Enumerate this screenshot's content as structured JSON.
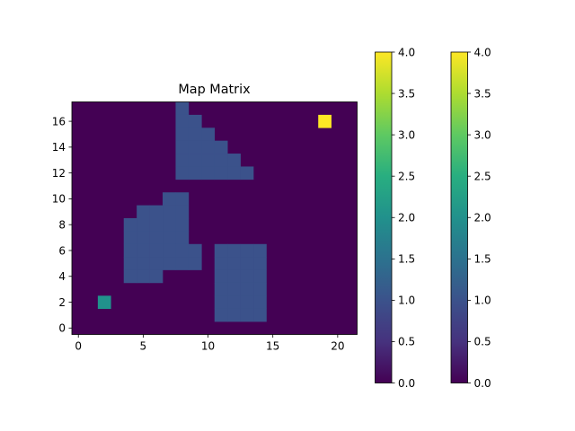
{
  "chart_data": {
    "type": "heatmap",
    "title": "Map Matrix",
    "xlabel": "",
    "ylabel": "",
    "rows": 18,
    "cols": 22,
    "xlim": [
      -0.5,
      21.5
    ],
    "ylim": [
      -0.5,
      17.5
    ],
    "xticks": [
      0,
      5,
      10,
      15,
      20
    ],
    "yticks": [
      0,
      2,
      4,
      6,
      8,
      10,
      12,
      14,
      16
    ],
    "colormap": "viridis",
    "vmin": 0,
    "vmax": 4,
    "background_value": 0,
    "regions": [
      {
        "value": 1,
        "cells": [
          [
            8,
            17
          ],
          [
            8,
            16
          ],
          [
            9,
            16
          ],
          [
            8,
            15
          ],
          [
            9,
            15
          ],
          [
            10,
            15
          ],
          [
            8,
            14
          ],
          [
            9,
            14
          ],
          [
            10,
            14
          ],
          [
            11,
            14
          ],
          [
            8,
            13
          ],
          [
            9,
            13
          ],
          [
            10,
            13
          ],
          [
            11,
            13
          ],
          [
            12,
            13
          ],
          [
            8,
            12
          ],
          [
            9,
            12
          ],
          [
            10,
            12
          ],
          [
            11,
            12
          ],
          [
            12,
            12
          ],
          [
            13,
            12
          ],
          [
            7,
            10
          ],
          [
            8,
            10
          ],
          [
            5,
            9
          ],
          [
            6,
            9
          ],
          [
            7,
            9
          ],
          [
            8,
            9
          ],
          [
            4,
            8
          ],
          [
            5,
            8
          ],
          [
            6,
            8
          ],
          [
            7,
            8
          ],
          [
            8,
            8
          ],
          [
            4,
            7
          ],
          [
            5,
            7
          ],
          [
            6,
            7
          ],
          [
            7,
            7
          ],
          [
            8,
            7
          ],
          [
            4,
            6
          ],
          [
            5,
            6
          ],
          [
            6,
            6
          ],
          [
            7,
            6
          ],
          [
            8,
            6
          ],
          [
            9,
            6
          ],
          [
            11,
            6
          ],
          [
            12,
            6
          ],
          [
            13,
            6
          ],
          [
            14,
            6
          ],
          [
            4,
            5
          ],
          [
            5,
            5
          ],
          [
            6,
            5
          ],
          [
            7,
            5
          ],
          [
            8,
            5
          ],
          [
            9,
            5
          ],
          [
            11,
            5
          ],
          [
            12,
            5
          ],
          [
            13,
            5
          ],
          [
            14,
            5
          ],
          [
            4,
            4
          ],
          [
            5,
            4
          ],
          [
            6,
            4
          ],
          [
            11,
            4
          ],
          [
            12,
            4
          ],
          [
            13,
            4
          ],
          [
            14,
            4
          ],
          [
            11,
            3
          ],
          [
            12,
            3
          ],
          [
            13,
            3
          ],
          [
            14,
            3
          ],
          [
            11,
            2
          ],
          [
            12,
            2
          ],
          [
            13,
            2
          ],
          [
            14,
            2
          ],
          [
            11,
            1
          ],
          [
            12,
            1
          ],
          [
            13,
            1
          ],
          [
            14,
            1
          ]
        ]
      },
      {
        "value": 2,
        "cells": [
          [
            2,
            2
          ]
        ]
      },
      {
        "value": 4,
        "cells": [
          [
            19,
            16
          ]
        ]
      }
    ],
    "colorbars": [
      {
        "min": 0.0,
        "max": 4.0,
        "ticks": [
          "0.0",
          "0.5",
          "1.0",
          "1.5",
          "2.0",
          "2.5",
          "3.0",
          "3.5",
          "4.0"
        ]
      },
      {
        "min": 0.0,
        "max": 4.0,
        "ticks": [
          "0.0",
          "0.5",
          "1.0",
          "1.5",
          "2.0",
          "2.5",
          "3.0",
          "3.5",
          "4.0"
        ]
      }
    ],
    "colors": {
      "0": "#440154",
      "1": "#3b528b",
      "2": "#21918c",
      "4": "#fde725"
    }
  }
}
